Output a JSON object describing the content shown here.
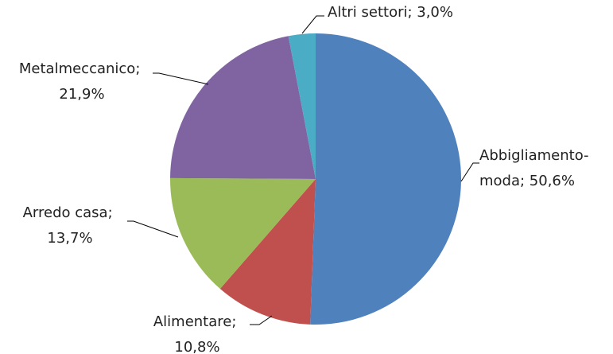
{
  "chart_data": {
    "type": "pie",
    "values": [
      50.6,
      10.8,
      13.7,
      21.9,
      3.0
    ],
    "value_labels": [
      "Abbigliamento-moda; 50,6%",
      "Alimentare; 10,8%",
      "Arredo casa; 13,7%",
      "Metalmeccanico; 21,9%",
      "Altri settori; 3,0%"
    ],
    "colors": [
      "#4f81bd",
      "#c0504d",
      "#9bbb59",
      "#8064a2",
      "#4bacc6"
    ]
  }
}
